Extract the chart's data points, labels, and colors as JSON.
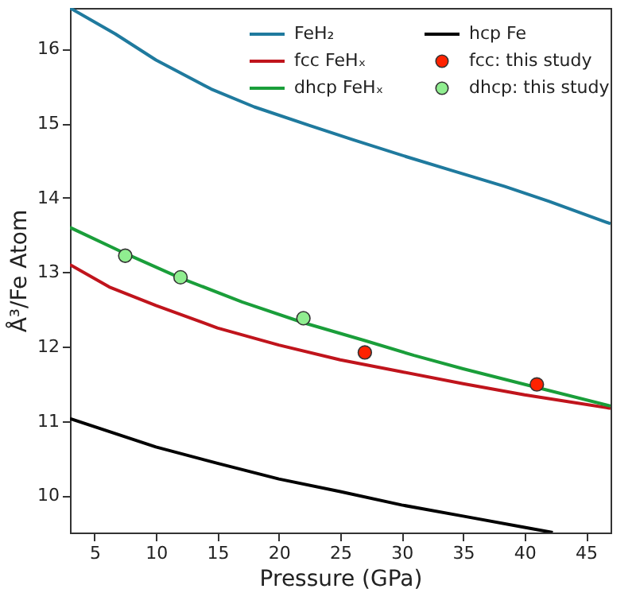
{
  "chart_data": {
    "type": "line",
    "xlabel": "Pressure (GPa)",
    "ylabel": "Å³/Fe Atom",
    "xlim": [
      3,
      47
    ],
    "ylim": [
      9.5,
      16.55
    ],
    "xticks": [
      5,
      10,
      15,
      20,
      25,
      30,
      35,
      40,
      45
    ],
    "yticks": [
      10,
      11,
      12,
      13,
      14,
      15,
      16
    ],
    "grid": false,
    "legend": "top right",
    "series": [
      {
        "name": "FeH₂",
        "color": "#1f7a9e",
        "x": [
          3,
          6.7,
          10,
          14.5,
          18,
          22.5,
          26,
          30.4,
          34,
          38.4,
          42,
          47
        ],
        "values": [
          16.55,
          16.2,
          15.85,
          15.46,
          15.22,
          14.97,
          14.78,
          14.55,
          14.37,
          14.15,
          13.95,
          13.65
        ]
      },
      {
        "name": "fcc FeHₓ",
        "color": "#c0141c",
        "x": [
          3,
          6.2,
          10,
          15,
          20,
          25,
          30,
          35,
          40,
          47
        ],
        "values": [
          13.1,
          12.8,
          12.55,
          12.25,
          12.02,
          11.82,
          11.66,
          11.5,
          11.35,
          11.17
        ]
      },
      {
        "name": "dhcp FeHₓ",
        "color": "#1a9e3a",
        "x": [
          3,
          7.5,
          12,
          17,
          22,
          27,
          31,
          35,
          41,
          47
        ],
        "values": [
          13.6,
          13.25,
          12.92,
          12.6,
          12.32,
          12.08,
          11.88,
          11.7,
          11.45,
          11.2
        ]
      },
      {
        "name": "hcp Fe",
        "color": "#000000",
        "x": [
          3,
          10,
          15,
          20,
          25,
          30,
          35,
          40,
          42.3
        ],
        "values": [
          11.03,
          10.65,
          10.43,
          10.22,
          10.05,
          9.87,
          9.72,
          9.57,
          9.5
        ]
      },
      {
        "name": "fcc: this study",
        "type": "scatter",
        "color": "#ff2200",
        "x": [
          27,
          41
        ],
        "values": [
          11.92,
          11.49
        ]
      },
      {
        "name": "dhcp: this study",
        "type": "scatter",
        "color": "#90ee90",
        "x": [
          7.5,
          12,
          22
        ],
        "values": [
          13.22,
          12.93,
          12.38
        ]
      }
    ]
  }
}
